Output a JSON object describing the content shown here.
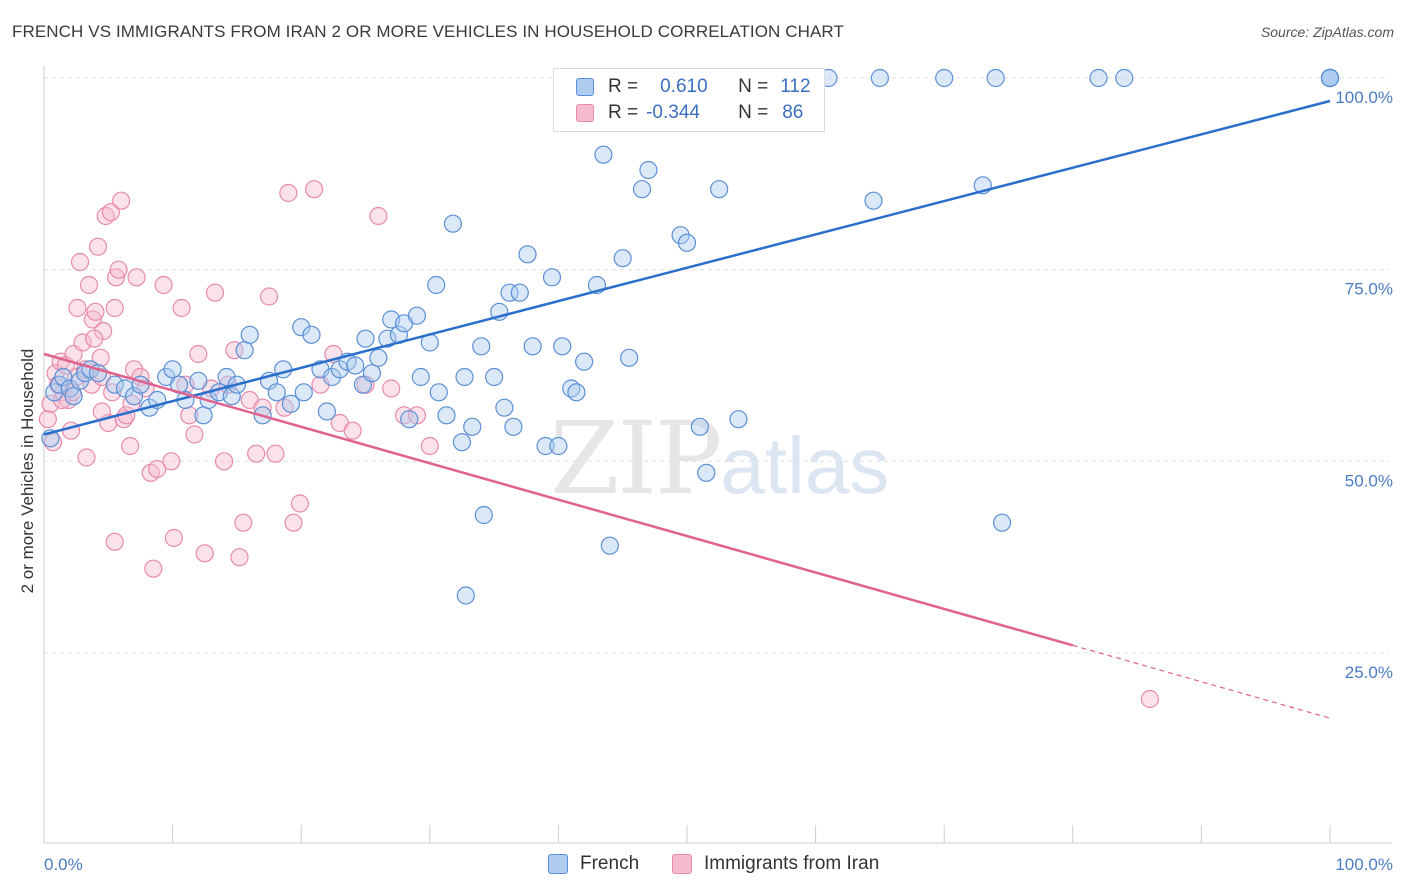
{
  "title": "FRENCH VS IMMIGRANTS FROM IRAN 2 OR MORE VEHICLES IN HOUSEHOLD CORRELATION CHART",
  "source": "Source: ZipAtlas.com",
  "watermark": {
    "zip": "ZIP",
    "atlas": "atlas"
  },
  "legend": {
    "rows": [
      {
        "r_label": "R =",
        "r_value": "0.610",
        "n_label": "N =",
        "n_value": "112"
      },
      {
        "r_label": "R =",
        "r_value": "-0.344",
        "n_label": "N =",
        "n_value": "86"
      }
    ]
  },
  "bottom_legend": {
    "french": "French",
    "iran": "Immigrants from Iran"
  },
  "colors": {
    "french_fill": "#aecbf0",
    "french_stroke": "#5b8fd6",
    "french_line": "#2a6fcb",
    "iran_fill": "#f5bcd0",
    "iran_stroke": "#e88aab",
    "iran_line": "#e0628f",
    "grid": "#e0e0e0",
    "tick_text": "#4a7cc4"
  },
  "chart_data": {
    "type": "scatter",
    "ylabel": "2 or more Vehicles in Household",
    "xlabel": "",
    "xlim": [
      0,
      100
    ],
    "ylim": [
      0,
      100
    ],
    "x_tick_labels": {
      "left": "0.0%",
      "right": "100.0%"
    },
    "y_ticks": [
      {
        "value": 25,
        "label": "25.0%"
      },
      {
        "value": 50,
        "label": "50.0%"
      },
      {
        "value": 75,
        "label": "75.0%"
      },
      {
        "value": 100,
        "label": "100.0%"
      }
    ],
    "grid": true,
    "series": [
      {
        "name": "French",
        "r": 0.61,
        "n": 112,
        "trend": {
          "x0": 0,
          "y0": 53.5,
          "x1": 100,
          "y1": 97.0
        },
        "points": [
          [
            0.5,
            53
          ],
          [
            0.8,
            59
          ],
          [
            1.2,
            60
          ],
          [
            1.5,
            61
          ],
          [
            2,
            59.5
          ],
          [
            2.3,
            58.5
          ],
          [
            2.8,
            60.5
          ],
          [
            3.2,
            61.5
          ],
          [
            3.6,
            62
          ],
          [
            4.2,
            61.5
          ],
          [
            5.5,
            60
          ],
          [
            6.3,
            59.5
          ],
          [
            7,
            58.5
          ],
          [
            7.5,
            60
          ],
          [
            8.2,
            57
          ],
          [
            8.8,
            58
          ],
          [
            9.5,
            61
          ],
          [
            10,
            62
          ],
          [
            10.5,
            60
          ],
          [
            11,
            58
          ],
          [
            12,
            60.5
          ],
          [
            12.4,
            56
          ],
          [
            12.8,
            58
          ],
          [
            13.6,
            59
          ],
          [
            14.2,
            61
          ],
          [
            14.6,
            58.5
          ],
          [
            15,
            60
          ],
          [
            15.6,
            64.5
          ],
          [
            16,
            66.5
          ],
          [
            17,
            56
          ],
          [
            17.5,
            60.5
          ],
          [
            18.1,
            59
          ],
          [
            18.6,
            62
          ],
          [
            19.2,
            57.5
          ],
          [
            20,
            67.5
          ],
          [
            20.2,
            59
          ],
          [
            20.8,
            66.5
          ],
          [
            21.5,
            62
          ],
          [
            22,
            56.5
          ],
          [
            22.4,
            61
          ],
          [
            23,
            62
          ],
          [
            23.6,
            63
          ],
          [
            24.2,
            62.5
          ],
          [
            24.8,
            60
          ],
          [
            25,
            66
          ],
          [
            25.5,
            61.5
          ],
          [
            26,
            63.5
          ],
          [
            26.7,
            66
          ],
          [
            27,
            68.5
          ],
          [
            27.6,
            66.5
          ],
          [
            28,
            68
          ],
          [
            28.4,
            55.5
          ],
          [
            29,
            69
          ],
          [
            29.3,
            61
          ],
          [
            30,
            65.5
          ],
          [
            30.5,
            73
          ],
          [
            30.7,
            59
          ],
          [
            31.3,
            56
          ],
          [
            31.8,
            81
          ],
          [
            32.5,
            52.5
          ],
          [
            32.7,
            61
          ],
          [
            32.8,
            32.5
          ],
          [
            33.3,
            54.5
          ],
          [
            34,
            65
          ],
          [
            34.2,
            43
          ],
          [
            35,
            61
          ],
          [
            35.4,
            69.5
          ],
          [
            35.8,
            57
          ],
          [
            36.2,
            72
          ],
          [
            36.5,
            54.5
          ],
          [
            37,
            72
          ],
          [
            37.6,
            77
          ],
          [
            38,
            65
          ],
          [
            39,
            52
          ],
          [
            39.5,
            74
          ],
          [
            40,
            52
          ],
          [
            40.3,
            65
          ],
          [
            41,
            59.5
          ],
          [
            41.4,
            59
          ],
          [
            42,
            63
          ],
          [
            43,
            73
          ],
          [
            43.5,
            90
          ],
          [
            44,
            39
          ],
          [
            45,
            76.5
          ],
          [
            45.5,
            63.5
          ],
          [
            46.5,
            85.5
          ],
          [
            47,
            88
          ],
          [
            49.5,
            79.5
          ],
          [
            50,
            78.5
          ],
          [
            51,
            54.5
          ],
          [
            51.5,
            48.5
          ],
          [
            52.5,
            85.5
          ],
          [
            54,
            55.5
          ],
          [
            56.5,
            100
          ],
          [
            61,
            100
          ],
          [
            64.5,
            84
          ],
          [
            65,
            100
          ],
          [
            70,
            100
          ],
          [
            73,
            86
          ],
          [
            74,
            100
          ],
          [
            74.5,
            42
          ],
          [
            82,
            100
          ],
          [
            84,
            100
          ],
          [
            100,
            100
          ],
          [
            100,
            100
          ],
          [
            100,
            100
          ],
          [
            100,
            100
          ],
          [
            100,
            100
          ],
          [
            100,
            100
          ],
          [
            100,
            100
          ],
          [
            100,
            100
          ],
          [
            100,
            100
          ]
        ]
      },
      {
        "name": "Immigrants from Iran",
        "r": -0.344,
        "n": 86,
        "trend": {
          "x0": 0,
          "y0": 64,
          "x1": 80,
          "y1": 26,
          "dash_to_x": 100,
          "dash_to_y": 16.5
        },
        "points": [
          [
            0.3,
            55.5
          ],
          [
            0.5,
            57.5
          ],
          [
            0.7,
            52.5
          ],
          [
            0.9,
            61.5
          ],
          [
            1.1,
            60
          ],
          [
            1.3,
            63
          ],
          [
            1.5,
            59
          ],
          [
            1.7,
            62.5
          ],
          [
            1.9,
            58
          ],
          [
            2.1,
            54
          ],
          [
            2.3,
            64
          ],
          [
            2.5,
            61
          ],
          [
            2.6,
            70
          ],
          [
            2.8,
            76
          ],
          [
            3,
            65.5
          ],
          [
            3.2,
            62
          ],
          [
            3.3,
            50.5
          ],
          [
            3.5,
            73
          ],
          [
            3.7,
            60
          ],
          [
            3.8,
            68.5
          ],
          [
            4,
            69.5
          ],
          [
            4.2,
            78
          ],
          [
            4.4,
            63.5
          ],
          [
            4.5,
            61
          ],
          [
            4.6,
            67
          ],
          [
            4.8,
            82
          ],
          [
            5,
            55
          ],
          [
            5.2,
            82.5
          ],
          [
            5.3,
            59
          ],
          [
            5.5,
            70
          ],
          [
            5.6,
            74
          ],
          [
            5.8,
            75
          ],
          [
            6,
            84
          ],
          [
            6.2,
            55.5
          ],
          [
            6.4,
            56
          ],
          [
            6.7,
            52
          ],
          [
            7,
            62
          ],
          [
            7.2,
            74
          ],
          [
            7.5,
            61
          ],
          [
            7.9,
            59.5
          ],
          [
            8.3,
            48.5
          ],
          [
            8.8,
            49
          ],
          [
            9.3,
            73
          ],
          [
            9.9,
            50
          ],
          [
            10.1,
            40
          ],
          [
            10.7,
            70
          ],
          [
            11,
            60
          ],
          [
            11.3,
            56
          ],
          [
            11.7,
            53.5
          ],
          [
            12,
            64
          ],
          [
            12.5,
            38
          ],
          [
            13,
            59.5
          ],
          [
            13.3,
            72
          ],
          [
            14,
            50
          ],
          [
            14.3,
            60
          ],
          [
            14.8,
            64.5
          ],
          [
            15.2,
            37.5
          ],
          [
            15.5,
            42
          ],
          [
            16,
            58
          ],
          [
            16.5,
            51
          ],
          [
            17,
            57
          ],
          [
            17.5,
            71.5
          ],
          [
            18,
            51
          ],
          [
            18.7,
            57
          ],
          [
            19,
            85
          ],
          [
            19.4,
            42
          ],
          [
            19.9,
            44.5
          ],
          [
            21,
            85.5
          ],
          [
            21.5,
            60
          ],
          [
            22.5,
            64
          ],
          [
            23,
            55
          ],
          [
            24,
            54
          ],
          [
            25,
            60
          ],
          [
            26,
            82
          ],
          [
            27,
            59.5
          ],
          [
            28,
            56
          ],
          [
            29,
            56
          ],
          [
            30,
            52
          ],
          [
            86,
            19
          ],
          [
            5.5,
            39.5
          ],
          [
            8.5,
            36
          ],
          [
            4.5,
            56.5
          ],
          [
            3.9,
            66
          ],
          [
            2.2,
            59
          ],
          [
            1.4,
            58
          ],
          [
            6.8,
            57.5
          ]
        ]
      }
    ]
  }
}
